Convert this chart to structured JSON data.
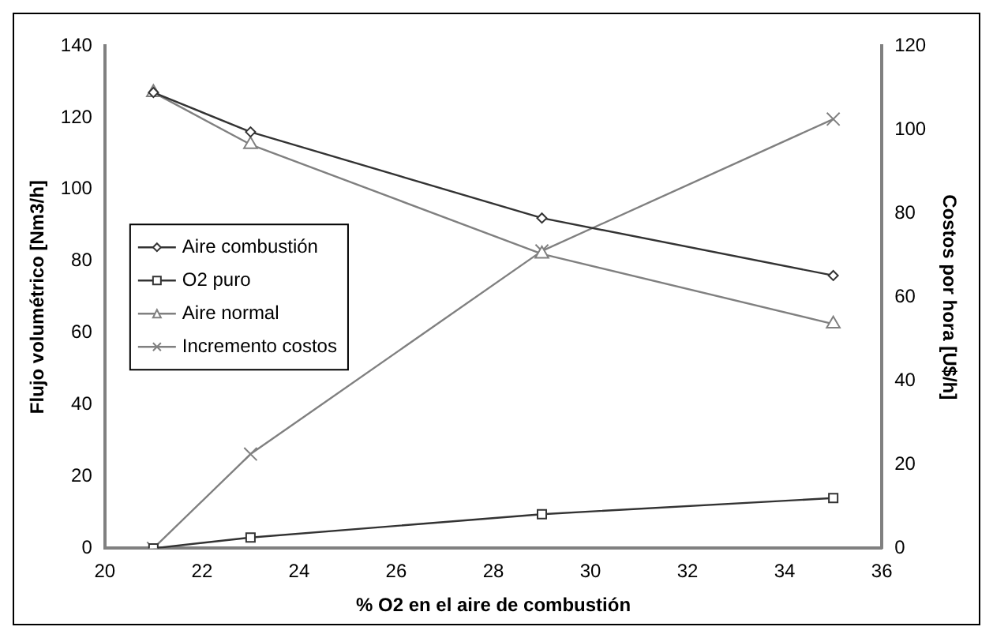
{
  "chart_data": {
    "type": "line",
    "xlabel": "% O2 en el aire de combustión",
    "ylabel": "Flujo volumétrico [Nm3/h]",
    "y2label": "Costos por hora [U$/h]",
    "x": [
      21,
      23,
      29,
      35
    ],
    "series": [
      {
        "name": "Aire combustión",
        "color": "#333333",
        "marker": "diamond",
        "values": [
          127,
          116,
          92,
          76
        ]
      },
      {
        "name": "O2 puro",
        "color": "#333333",
        "marker": "square",
        "values": [
          0,
          3,
          9.5,
          14
        ]
      },
      {
        "name": "Aire normal",
        "color": "#808080",
        "marker": "triangle",
        "values": [
          127,
          112.5,
          82,
          62.5
        ]
      },
      {
        "name": "Incremento costos",
        "color": "#808080",
        "marker": "cross",
        "axis": "y2",
        "values": [
          0,
          22.5,
          71,
          102.5
        ]
      }
    ],
    "xlim": [
      20,
      36
    ],
    "xticks": [
      20,
      22,
      24,
      26,
      28,
      30,
      32,
      34,
      36
    ],
    "ylim": [
      0,
      140
    ],
    "yticks": [
      0,
      20,
      40,
      60,
      80,
      100,
      120,
      140
    ],
    "y2lim": [
      0,
      120
    ],
    "y2ticks": [
      0,
      20,
      40,
      60,
      80,
      100,
      120
    ],
    "grid": false,
    "legend": "left",
    "line_style": "solid"
  }
}
